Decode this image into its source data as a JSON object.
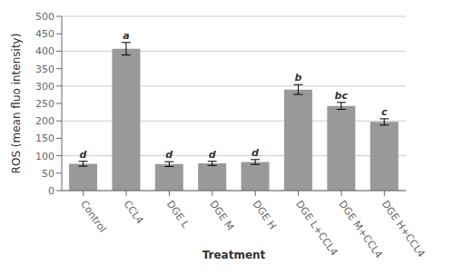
{
  "chart_data": {
    "type": "bar",
    "categories": [
      "Control",
      "CCL4",
      "DGE L",
      "DGE M",
      "DGE H",
      "DGE L+CCL4",
      "DGE M+CCL4",
      "DGE H+CCL4"
    ],
    "values": [
      77,
      407,
      76,
      78,
      82,
      290,
      243,
      197
    ],
    "errors": [
      7,
      18,
      7,
      6,
      7,
      14,
      10,
      9
    ],
    "annotations": [
      "d",
      "a",
      "d",
      "d",
      "d",
      "b",
      "bc",
      "c"
    ],
    "color": "#999999",
    "xlabel": "Treatment",
    "ylabel": "ROS (mean fluo intensity)",
    "ylim": [
      0,
      500
    ],
    "yticks": [
      0,
      50,
      100,
      150,
      200,
      250,
      300,
      350,
      400,
      450,
      500
    ],
    "grid": true
  }
}
